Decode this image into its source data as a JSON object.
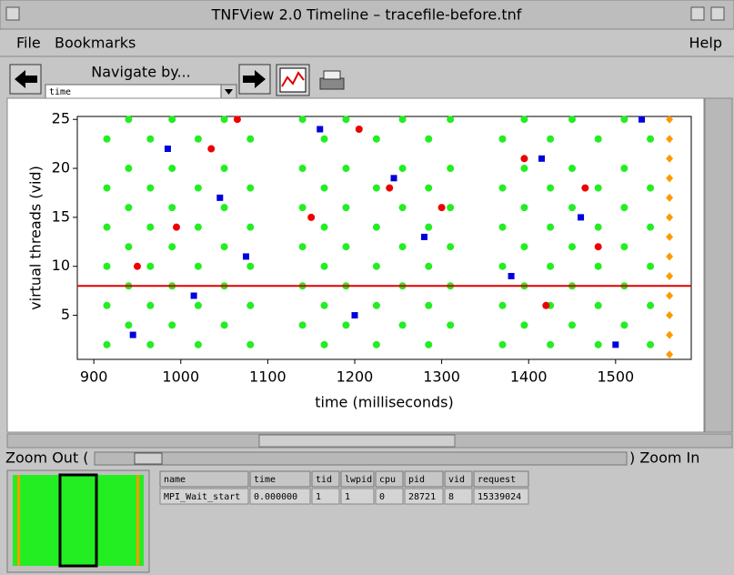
{
  "window": {
    "title": "TNFView 2.0 Timeline – tracefile-before.tnf"
  },
  "menu": [
    "File",
    "Bookmarks",
    "Help"
  ],
  "toolbar": {
    "navigate_label": "Navigate by...",
    "navigate_value": "time"
  },
  "chart_data": {
    "type": "scatter",
    "xlabel": "time (milliseconds)",
    "ylabel": "virtual threads (vid)",
    "xlim": [
      881,
      1587
    ],
    "ylim": [
      0.5,
      25.3
    ],
    "xticks": [
      900,
      1000,
      1100,
      1200,
      1300,
      1400,
      1500
    ],
    "yticks": [
      5,
      10,
      15,
      20,
      25
    ],
    "hline": {
      "value": 8,
      "color": "#e00000"
    },
    "series": [
      {
        "color": "#22ee22",
        "marker": "circle",
        "x": [
          915,
          915,
          915,
          915,
          915,
          915,
          940,
          940,
          940,
          940,
          940,
          940,
          965,
          965,
          965,
          965,
          965,
          965,
          990,
          990,
          990,
          990,
          990,
          990,
          1020,
          1020,
          1020,
          1020,
          1020,
          1020,
          1050,
          1050,
          1050,
          1050,
          1050,
          1050,
          1080,
          1080,
          1080,
          1080,
          1080,
          1080,
          1140,
          1140,
          1140,
          1140,
          1140,
          1140,
          1165,
          1165,
          1165,
          1165,
          1165,
          1165,
          1190,
          1190,
          1190,
          1190,
          1190,
          1190,
          1225,
          1225,
          1225,
          1225,
          1225,
          1225,
          1255,
          1255,
          1255,
          1255,
          1255,
          1255,
          1285,
          1285,
          1285,
          1285,
          1285,
          1285,
          1310,
          1310,
          1310,
          1310,
          1310,
          1310,
          1370,
          1370,
          1370,
          1370,
          1370,
          1370,
          1395,
          1395,
          1395,
          1395,
          1395,
          1395,
          1425,
          1425,
          1425,
          1425,
          1425,
          1425,
          1450,
          1450,
          1450,
          1450,
          1450,
          1450,
          1480,
          1480,
          1480,
          1480,
          1480,
          1480,
          1510,
          1510,
          1510,
          1510,
          1510,
          1510,
          1540,
          1540,
          1540,
          1540,
          1540,
          1540
        ],
        "values": [
          2,
          6,
          10,
          14,
          18,
          23,
          4,
          8,
          12,
          16,
          20,
          25,
          2,
          6,
          10,
          14,
          18,
          23,
          4,
          8,
          12,
          16,
          20,
          25,
          2,
          6,
          10,
          14,
          18,
          23,
          4,
          8,
          12,
          16,
          20,
          25,
          2,
          6,
          10,
          14,
          18,
          23,
          4,
          8,
          12,
          16,
          20,
          25,
          2,
          6,
          10,
          14,
          18,
          23,
          4,
          8,
          12,
          16,
          20,
          25,
          2,
          6,
          10,
          14,
          18,
          23,
          4,
          8,
          12,
          16,
          20,
          25,
          2,
          6,
          10,
          14,
          18,
          23,
          4,
          8,
          12,
          16,
          20,
          25,
          2,
          6,
          10,
          14,
          18,
          23,
          4,
          8,
          12,
          16,
          20,
          25,
          2,
          6,
          10,
          14,
          18,
          23,
          4,
          8,
          12,
          16,
          20,
          25,
          2,
          6,
          10,
          14,
          18,
          23,
          4,
          8,
          12,
          16,
          20,
          25,
          2,
          6,
          10,
          14,
          18,
          23
        ]
      },
      {
        "color": "#0000dd",
        "marker": "square",
        "x": [
          945,
          985,
          1015,
          1045,
          1075,
          1160,
          1200,
          1245,
          1280,
          1380,
          1415,
          1460,
          1500,
          1530
        ],
        "values": [
          3,
          22,
          7,
          17,
          11,
          24,
          5,
          19,
          13,
          9,
          21,
          15,
          2,
          25
        ]
      },
      {
        "color": "#ee0000",
        "marker": "circle",
        "x": [
          950,
          995,
          1035,
          1065,
          1150,
          1205,
          1240,
          1300,
          1395,
          1420,
          1465,
          1480
        ],
        "values": [
          10,
          14,
          22,
          25,
          15,
          24,
          18,
          16,
          21,
          6,
          18,
          12
        ]
      },
      {
        "color": "#ff9900",
        "marker": "diamond",
        "x": [
          1562,
          1562,
          1562,
          1562,
          1562,
          1562,
          1562,
          1562,
          1562,
          1562,
          1562,
          1562,
          1562
        ],
        "values": [
          1,
          3,
          5,
          7,
          9,
          11,
          13,
          15,
          17,
          19,
          21,
          23,
          25
        ]
      }
    ]
  },
  "zoom": {
    "out": "Zoom Out (",
    "in": ") Zoom In"
  },
  "table": {
    "columns": [
      "name",
      "time",
      "tid",
      "lwpid",
      "cpu",
      "pid",
      "vid",
      "request"
    ],
    "rows": [
      [
        "MPI_Wait_start",
        "0.000000",
        "1",
        "1",
        "0",
        "28721",
        "8",
        "15339024"
      ]
    ]
  }
}
